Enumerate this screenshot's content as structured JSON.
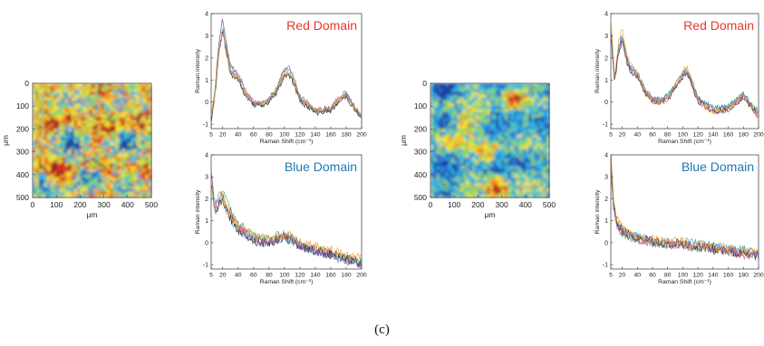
{
  "caption": "(c)",
  "colors": {
    "red_title": "#e8372d",
    "blue_title": "#1f78b4",
    "map_scale": [
      "#1f3fa0",
      "#2a7fd4",
      "#33b6e0",
      "#8ed36a",
      "#f3e531",
      "#f59a2a",
      "#d7301f",
      "#8b1a1a"
    ],
    "trace_colors": [
      "#e0448c",
      "#2c9fd8",
      "#4aa84a",
      "#222222",
      "#9b59b6",
      "#f0a030"
    ]
  },
  "chart_data": [
    {
      "type": "heatmap",
      "panel": "left",
      "xlabel": "μm",
      "ylabel": "μm",
      "xlim": [
        0,
        500
      ],
      "ylim": [
        0,
        500
      ],
      "xticks": [
        "0",
        "100",
        "200",
        "300",
        "400",
        "500"
      ],
      "yticks": [
        "0",
        "100",
        "200",
        "300",
        "400",
        "500"
      ],
      "y_inverted": true,
      "character": "mixed red/yellow/green domains with scattered blue regions",
      "hotspots": [
        [
          120,
          400,
          7
        ],
        [
          350,
          200,
          6
        ],
        [
          420,
          150,
          6
        ],
        [
          150,
          150,
          6
        ]
      ],
      "coldspots": [
        [
          150,
          250,
          1
        ],
        [
          380,
          250,
          1
        ],
        [
          250,
          420,
          1
        ],
        [
          40,
          460,
          1
        ]
      ]
    },
    {
      "type": "line",
      "panel": "left",
      "title": "Red Domain",
      "xlabel": "Raman Shift (cm⁻¹)",
      "ylabel": "Raman intensity",
      "xlim": [
        5,
        200
      ],
      "ylim": [
        -1.2,
        4
      ],
      "xticks": [
        5,
        20,
        40,
        60,
        80,
        100,
        120,
        140,
        160,
        180,
        200
      ],
      "yticks": [
        -1,
        0,
        1,
        2,
        3,
        4
      ],
      "series_count": 6,
      "x": [
        5,
        10,
        15,
        20,
        25,
        30,
        40,
        50,
        60,
        70,
        80,
        90,
        100,
        105,
        110,
        120,
        140,
        160,
        170,
        180,
        190,
        200
      ],
      "y": [
        -0.8,
        0.5,
        2.5,
        3.6,
        2.5,
        1.5,
        1.2,
        0.4,
        0.0,
        -0.1,
        0.1,
        0.6,
        1.4,
        1.5,
        1.2,
        0.2,
        -0.4,
        -0.3,
        0.1,
        0.4,
        -0.2,
        -0.7
      ]
    },
    {
      "type": "line",
      "panel": "left",
      "title": "Blue Domain",
      "xlabel": "Raman Shift (cm⁻¹)",
      "ylabel": "Raman intensity",
      "xlim": [
        5,
        200
      ],
      "ylim": [
        -1.2,
        4
      ],
      "xticks": [
        5,
        20,
        40,
        60,
        80,
        100,
        120,
        140,
        160,
        180,
        200
      ],
      "yticks": [
        -1,
        0,
        1,
        2,
        3,
        4
      ],
      "series_count": 6,
      "x": [
        5,
        10,
        15,
        20,
        25,
        30,
        40,
        50,
        60,
        70,
        80,
        90,
        100,
        110,
        120,
        140,
        160,
        180,
        200
      ],
      "y": [
        3.0,
        1.5,
        1.9,
        2.2,
        1.6,
        1.3,
        0.7,
        0.5,
        0.2,
        0.1,
        0.1,
        0.2,
        0.3,
        0.2,
        -0.1,
        -0.3,
        -0.5,
        -0.7,
        -0.9
      ]
    },
    {
      "type": "heatmap",
      "panel": "right",
      "xlabel": "μm",
      "ylabel": "μm",
      "xlim": [
        0,
        500
      ],
      "ylim": [
        0,
        500
      ],
      "xticks": [
        "0",
        "100",
        "200",
        "300",
        "400",
        "500"
      ],
      "yticks": [
        "0",
        "100",
        "200",
        "300",
        "400",
        "500"
      ],
      "y_inverted": true,
      "character": "predominantly blue/cyan background with isolated red and yellow domains",
      "hotspots": [
        [
          280,
          460,
          7
        ],
        [
          350,
          70,
          6
        ],
        [
          150,
          180,
          5
        ],
        [
          240,
          300,
          5
        ],
        [
          80,
          250,
          5
        ]
      ],
      "coldspots": [
        [
          60,
          20,
          0
        ],
        [
          420,
          150,
          1
        ],
        [
          400,
          330,
          1
        ],
        [
          100,
          420,
          1
        ]
      ]
    },
    {
      "type": "line",
      "panel": "right",
      "title": "Red Domain",
      "xlabel": "Raman Shift (cm⁻¹)",
      "ylabel": "Raman intensity",
      "xlim": [
        5,
        200
      ],
      "ylim": [
        -1.2,
        4
      ],
      "xticks": [
        5,
        20,
        40,
        60,
        80,
        100,
        120,
        140,
        160,
        180,
        200
      ],
      "yticks": [
        -1,
        0,
        1,
        2,
        3,
        4
      ],
      "series_count": 6,
      "x": [
        5,
        10,
        15,
        20,
        25,
        30,
        40,
        50,
        60,
        70,
        80,
        90,
        100,
        105,
        110,
        120,
        140,
        160,
        170,
        180,
        190,
        200
      ],
      "y": [
        3.5,
        1.0,
        2.5,
        3.1,
        2.2,
        1.6,
        1.3,
        0.5,
        0.1,
        0.0,
        0.2,
        0.7,
        1.3,
        1.5,
        1.1,
        0.1,
        -0.4,
        -0.3,
        0.0,
        0.3,
        -0.2,
        -0.6
      ]
    },
    {
      "type": "line",
      "panel": "right",
      "title": "Blue Domain",
      "xlabel": "Raman Shift (cm⁻¹)",
      "ylabel": "Raman intensity",
      "xlim": [
        5,
        200
      ],
      "ylim": [
        -1.2,
        4
      ],
      "xticks": [
        5,
        20,
        40,
        60,
        80,
        100,
        120,
        140,
        160,
        180,
        200
      ],
      "yticks": [
        -1,
        0,
        1,
        2,
        3,
        4
      ],
      "series_count": 6,
      "x": [
        5,
        8,
        12,
        20,
        30,
        40,
        60,
        80,
        100,
        120,
        140,
        160,
        180,
        200
      ],
      "y": [
        4.0,
        2.0,
        1.0,
        0.6,
        0.4,
        0.3,
        0.1,
        0.0,
        0.0,
        -0.1,
        -0.2,
        -0.3,
        -0.4,
        -0.5
      ]
    }
  ]
}
